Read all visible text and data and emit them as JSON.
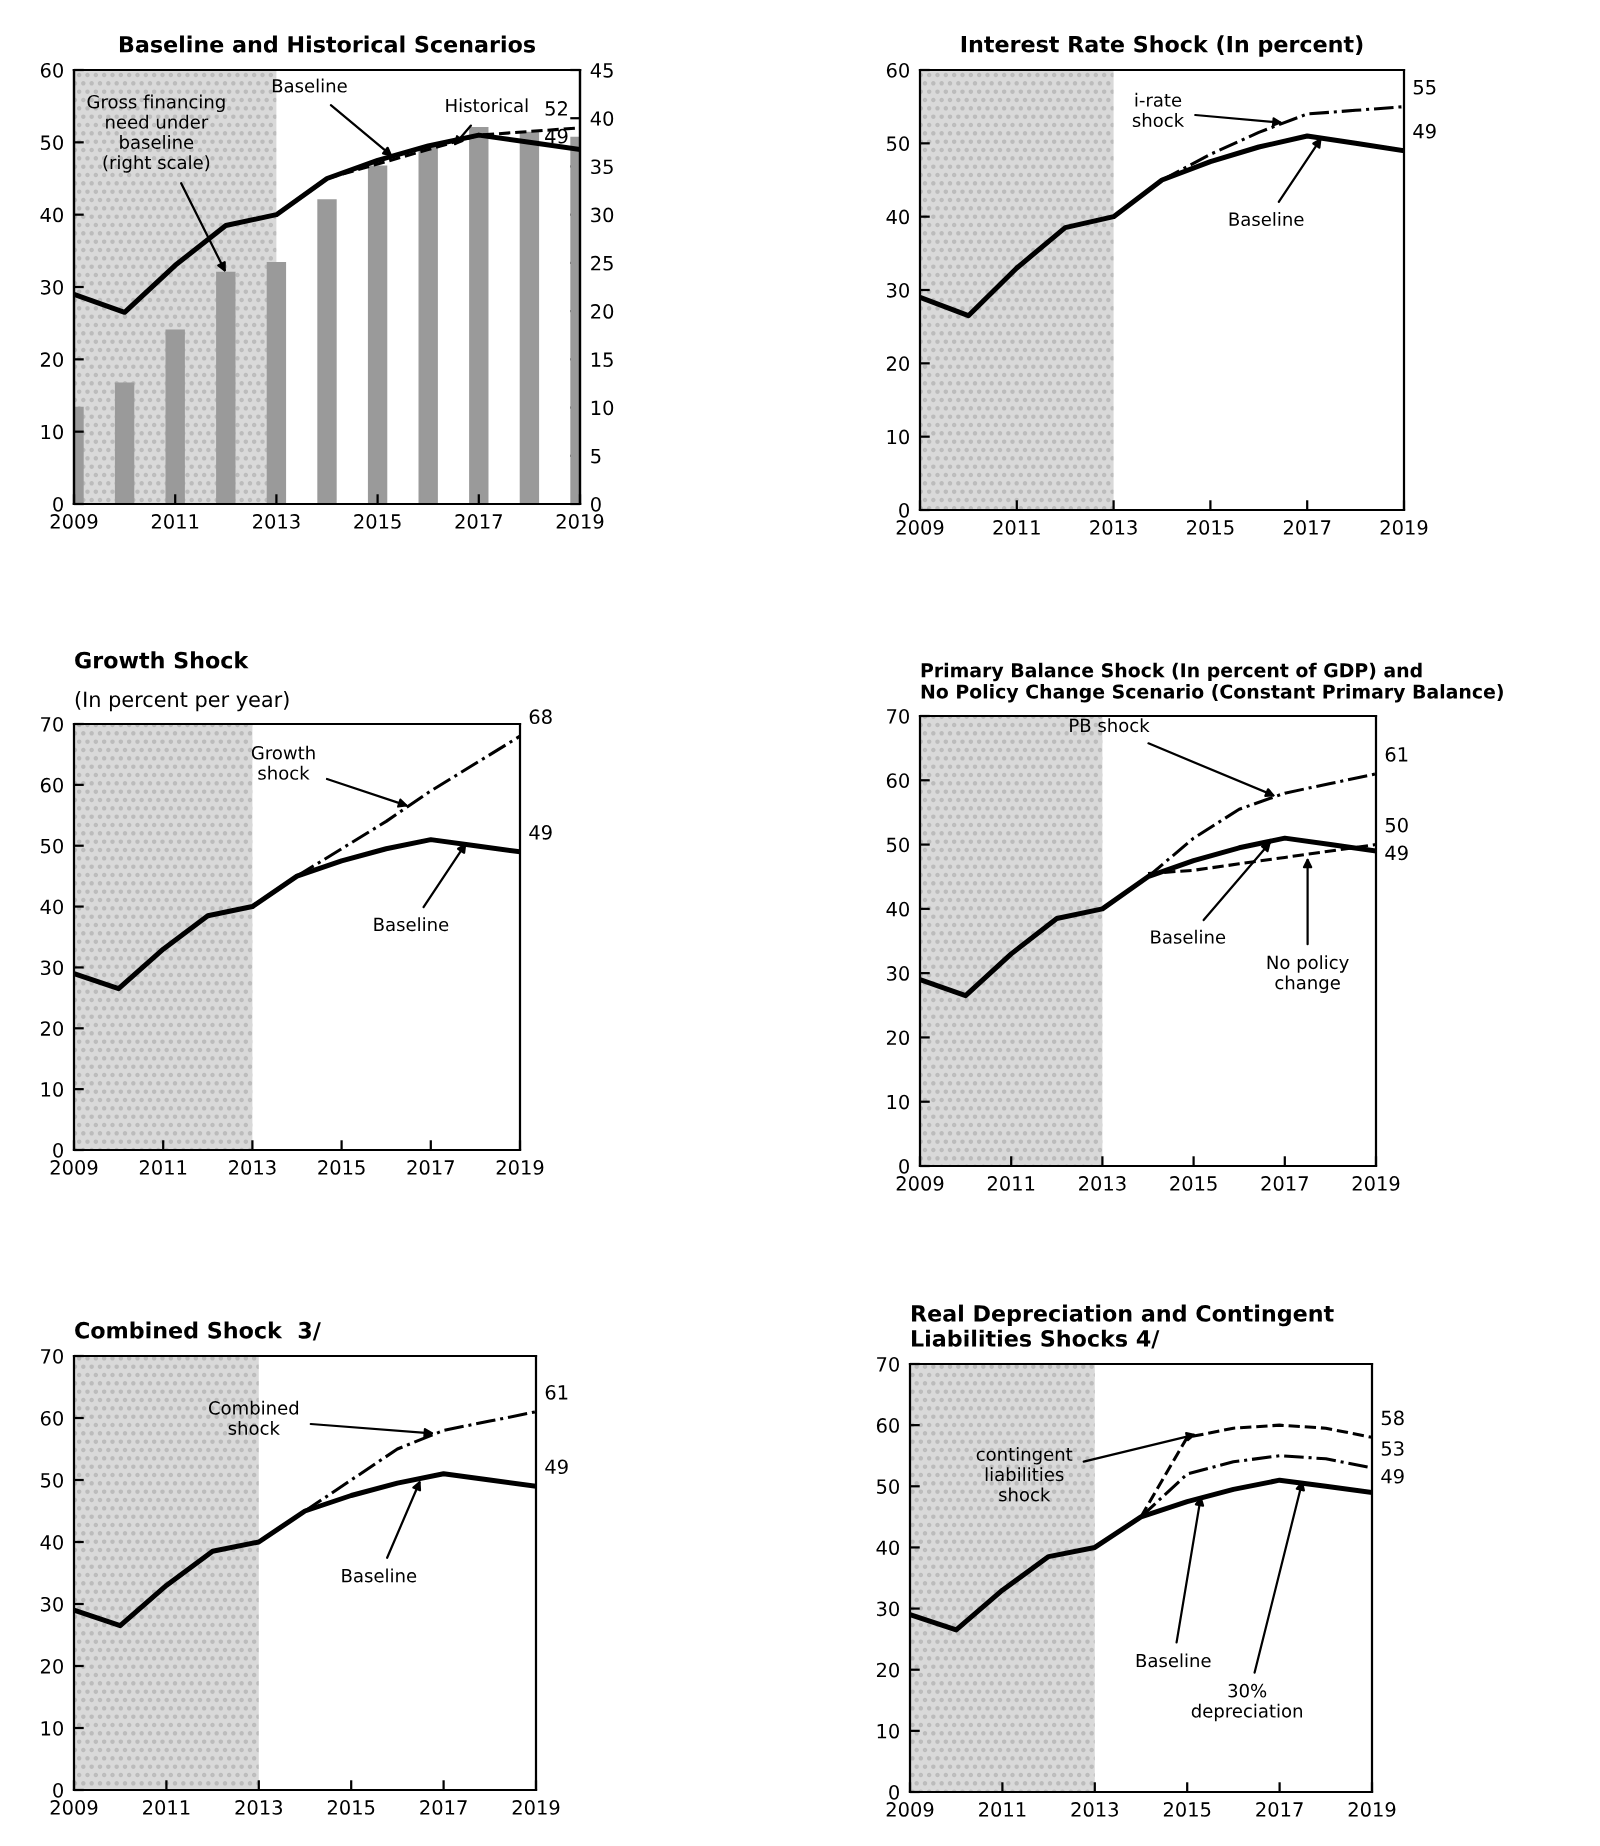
{
  "chart_data": [
    {
      "type": "line",
      "title": "Baseline and Historical Scenarios",
      "x": [
        2009,
        2010,
        2011,
        2012,
        2013,
        2014,
        2015,
        2016,
        2017,
        2018,
        2019
      ],
      "xlim": [
        2009,
        2019
      ],
      "xticks": [
        2009,
        2011,
        2013,
        2015,
        2017,
        2019
      ],
      "ylim": [
        0,
        60
      ],
      "yticks": [
        0,
        10,
        20,
        30,
        40,
        50,
        60
      ],
      "y2lim": [
        0,
        45
      ],
      "y2ticks": [
        0,
        5,
        10,
        15,
        20,
        25,
        30,
        35,
        40,
        45
      ],
      "grid": false,
      "legend": false,
      "bands": [
        {
          "axis": "x",
          "from": 2009,
          "to": 2013,
          "color": "#d9d9d9"
        }
      ],
      "series": [
        {
          "type": "bar",
          "axis": "y2",
          "color": "#9a9a9a",
          "values": [
            10,
            12.5,
            18,
            24,
            25,
            31.5,
            35,
            37,
            39,
            38.5,
            38
          ]
        },
        {
          "color": "#000000",
          "line_style": "solid",
          "values": [
            29,
            26.5,
            33,
            38.5,
            40,
            45,
            47.5,
            49.5,
            51,
            50,
            49
          ],
          "value_labels": [
            null,
            null,
            null,
            null,
            null,
            null,
            null,
            null,
            null,
            null,
            "49"
          ]
        },
        {
          "color": "#000000",
          "line_style": "dashed",
          "values": [
            null,
            null,
            null,
            null,
            null,
            45,
            47,
            49,
            51,
            51.5,
            52
          ],
          "value_labels": [
            null,
            null,
            null,
            null,
            null,
            null,
            null,
            null,
            null,
            null,
            "52"
          ]
        }
      ],
      "annotations": [
        {
          "text": "Gross financing\nneed under\nbaseline\n(right scale)",
          "x": 2012,
          "y": 32
        },
        {
          "text": "Baseline",
          "x": 2015.3,
          "y": 48
        },
        {
          "text": "Historical",
          "x": 2016.5,
          "y": 49.5
        }
      ]
    },
    {
      "type": "line",
      "title": "Interest Rate Shock (In percent)",
      "x": [
        2009,
        2010,
        2011,
        2012,
        2013,
        2014,
        2015,
        2016,
        2017,
        2018,
        2019
      ],
      "xlim": [
        2009,
        2019
      ],
      "xticks": [
        2009,
        2011,
        2013,
        2015,
        2017,
        2019
      ],
      "ylim": [
        0,
        60
      ],
      "yticks": [
        0,
        10,
        20,
        30,
        40,
        50,
        60
      ],
      "grid": false,
      "legend": false,
      "bands": [
        {
          "axis": "x",
          "from": 2009,
          "to": 2013,
          "color": "#d9d9d9"
        }
      ],
      "series": [
        {
          "color": "#000000",
          "line_style": "solid",
          "values": [
            29,
            26.5,
            33,
            38.5,
            40,
            45,
            47.5,
            49.5,
            51,
            50,
            49
          ],
          "value_labels": [
            null,
            null,
            null,
            null,
            null,
            null,
            null,
            null,
            null,
            null,
            "49"
          ]
        },
        {
          "color": "#000000",
          "line_style": "dashdot",
          "values": [
            null,
            null,
            null,
            null,
            null,
            45,
            48.5,
            51.5,
            54,
            54.5,
            55
          ],
          "value_labels": [
            null,
            null,
            null,
            null,
            null,
            null,
            null,
            null,
            null,
            null,
            "55"
          ]
        }
      ],
      "annotations": [
        {
          "text": "i-rate\nshock",
          "x": 2016.5,
          "y": 52.8
        },
        {
          "text": "Baseline",
          "x": 2017.3,
          "y": 50.8
        }
      ]
    },
    {
      "type": "line",
      "title": "Growth Shock",
      "subtitle": "(In percent per year)",
      "x": [
        2009,
        2010,
        2011,
        2012,
        2013,
        2014,
        2015,
        2016,
        2017,
        2018,
        2019
      ],
      "xlim": [
        2009,
        2019
      ],
      "xticks": [
        2009,
        2011,
        2013,
        2015,
        2017,
        2019
      ],
      "ylim": [
        0,
        70
      ],
      "yticks": [
        0,
        10,
        20,
        30,
        40,
        50,
        60,
        70
      ],
      "grid": false,
      "legend": false,
      "bands": [
        {
          "axis": "x",
          "from": 2009,
          "to": 2013,
          "color": "#d9d9d9"
        }
      ],
      "series": [
        {
          "color": "#000000",
          "line_style": "solid",
          "values": [
            29,
            26.5,
            33,
            38.5,
            40,
            45,
            47.5,
            49.5,
            51,
            50,
            49
          ],
          "value_labels": [
            null,
            null,
            null,
            null,
            null,
            null,
            null,
            null,
            null,
            null,
            "49"
          ]
        },
        {
          "color": "#000000",
          "line_style": "dashdot",
          "values": [
            null,
            null,
            null,
            null,
            null,
            45,
            49.5,
            54,
            59,
            63.5,
            68
          ],
          "value_labels": [
            null,
            null,
            null,
            null,
            null,
            null,
            null,
            null,
            null,
            null,
            "68"
          ]
        }
      ],
      "annotations": [
        {
          "text": "Growth\nshock",
          "x": 2016.5,
          "y": 56.5
        },
        {
          "text": "Baseline",
          "x": 2017.8,
          "y": 50.5
        }
      ]
    },
    {
      "type": "line",
      "title": "Primary Balance Shock (In percent of GDP) and\nNo Policy Change Scenario (Constant Primary Balance)",
      "x": [
        2009,
        2010,
        2011,
        2012,
        2013,
        2014,
        2015,
        2016,
        2017,
        2018,
        2019
      ],
      "xlim": [
        2009,
        2019
      ],
      "xticks": [
        2009,
        2011,
        2013,
        2015,
        2017,
        2019
      ],
      "ylim": [
        0,
        70
      ],
      "yticks": [
        0,
        10,
        20,
        30,
        40,
        50,
        60,
        70
      ],
      "grid": false,
      "legend": false,
      "bands": [
        {
          "axis": "x",
          "from": 2009,
          "to": 2013,
          "color": "#d9d9d9"
        }
      ],
      "series": [
        {
          "color": "#000000",
          "line_style": "solid",
          "values": [
            29,
            26.5,
            33,
            38.5,
            40,
            45,
            47.5,
            49.5,
            51,
            50,
            49
          ],
          "value_labels": [
            null,
            null,
            null,
            null,
            null,
            null,
            null,
            null,
            null,
            null,
            "49"
          ]
        },
        {
          "color": "#000000",
          "line_style": "dashdot",
          "values": [
            null,
            null,
            null,
            null,
            null,
            45,
            51,
            55.5,
            58,
            59.5,
            61
          ],
          "value_labels": [
            null,
            null,
            null,
            null,
            null,
            null,
            null,
            null,
            null,
            null,
            "61"
          ]
        },
        {
          "color": "#000000",
          "line_style": "dashed",
          "values": [
            null,
            null,
            null,
            null,
            null,
            45.5,
            46,
            47,
            48,
            49,
            50
          ],
          "value_labels": [
            null,
            null,
            null,
            null,
            null,
            null,
            null,
            null,
            null,
            null,
            "50"
          ]
        }
      ],
      "annotations": [
        {
          "text": "PB shock",
          "x": 2016.8,
          "y": 57.5
        },
        {
          "text": "Baseline",
          "x": 2016.7,
          "y": 50.5
        },
        {
          "text": "No policy\nchange",
          "x": 2017.5,
          "y": 48
        }
      ]
    },
    {
      "type": "line",
      "title": "Combined Shock  3/",
      "x": [
        2009,
        2010,
        2011,
        2012,
        2013,
        2014,
        2015,
        2016,
        2017,
        2018,
        2019
      ],
      "xlim": [
        2009,
        2019
      ],
      "xticks": [
        2009,
        2011,
        2013,
        2015,
        2017,
        2019
      ],
      "ylim": [
        0,
        70
      ],
      "yticks": [
        0,
        10,
        20,
        30,
        40,
        50,
        60,
        70
      ],
      "grid": false,
      "legend": false,
      "bands": [
        {
          "axis": "x",
          "from": 2009,
          "to": 2013,
          "color": "#d9d9d9"
        }
      ],
      "series": [
        {
          "color": "#000000",
          "line_style": "solid",
          "values": [
            29,
            26.5,
            33,
            38.5,
            40,
            45,
            47.5,
            49.5,
            51,
            50,
            49
          ],
          "value_labels": [
            null,
            null,
            null,
            null,
            null,
            null,
            null,
            null,
            null,
            null,
            "49"
          ]
        },
        {
          "color": "#000000",
          "line_style": "dashdot",
          "values": [
            null,
            null,
            null,
            null,
            null,
            45,
            50,
            55,
            58,
            59.5,
            61
          ],
          "value_labels": [
            null,
            null,
            null,
            null,
            null,
            null,
            null,
            null,
            null,
            null,
            "61"
          ]
        }
      ],
      "annotations": [
        {
          "text": "Combined\nshock",
          "x": 2016.8,
          "y": 57.5
        },
        {
          "text": "Baseline",
          "x": 2016.5,
          "y": 50
        }
      ]
    },
    {
      "type": "line",
      "title": "Real Depreciation and Contingent\nLiabilities Shocks 4/",
      "x": [
        2009,
        2010,
        2011,
        2012,
        2013,
        2014,
        2015,
        2016,
        2017,
        2018,
        2019
      ],
      "xlim": [
        2009,
        2019
      ],
      "xticks": [
        2009,
        2011,
        2013,
        2015,
        2017,
        2019
      ],
      "ylim": [
        0,
        70
      ],
      "yticks": [
        0,
        10,
        20,
        30,
        40,
        50,
        60,
        70
      ],
      "grid": false,
      "legend": false,
      "bands": [
        {
          "axis": "x",
          "from": 2009,
          "to": 2013,
          "color": "#d9d9d9"
        }
      ],
      "series": [
        {
          "color": "#000000",
          "line_style": "solid",
          "values": [
            29,
            26.5,
            33,
            38.5,
            40,
            45,
            47.5,
            49.5,
            51,
            50,
            49
          ],
          "value_labels": [
            null,
            null,
            null,
            null,
            null,
            null,
            null,
            null,
            null,
            null,
            "49"
          ]
        },
        {
          "color": "#000000",
          "line_style": "dashed",
          "values": [
            null,
            null,
            null,
            null,
            null,
            45,
            58,
            59.5,
            60,
            59.5,
            58
          ],
          "value_labels": [
            null,
            null,
            null,
            null,
            null,
            null,
            null,
            null,
            null,
            null,
            "58"
          ]
        },
        {
          "color": "#000000",
          "line_style": "dashdot",
          "values": [
            null,
            null,
            null,
            null,
            null,
            45,
            52,
            54,
            55,
            54.5,
            53
          ],
          "value_labels": [
            null,
            null,
            null,
            null,
            null,
            null,
            null,
            null,
            null,
            null,
            "53"
          ]
        }
      ],
      "annotations": [
        {
          "text": "contingent\nliabilities\nshock",
          "x": 2015.2,
          "y": 58.5
        },
        {
          "text": "Baseline",
          "x": 2015.3,
          "y": 48.5
        },
        {
          "text": "30%\ndepreciation",
          "x": 2017.5,
          "y": 51
        }
      ]
    }
  ]
}
